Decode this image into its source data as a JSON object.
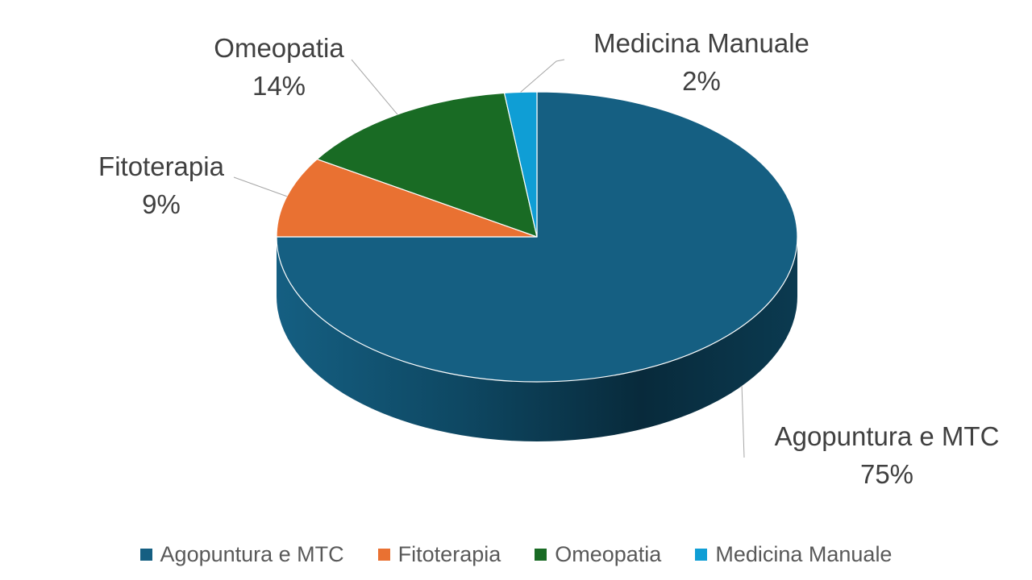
{
  "chart_data": {
    "type": "pie",
    "style": "3d",
    "categories": [
      "Agopuntura e MTC",
      "Fitoterapia",
      "Omeopatia",
      "Medicina Manuale"
    ],
    "values": [
      75,
      9,
      14,
      2
    ],
    "value_labels": [
      "75%",
      "9%",
      "14%",
      "2%"
    ],
    "colors": [
      "#155F82",
      "#E97132",
      "#196B24",
      "#0F9ED5"
    ],
    "legend": {
      "position": "bottom",
      "entries": [
        "Agopuntura e MTC",
        "Fitoterapia",
        "Omeopatia",
        "Medicina Manuale"
      ]
    }
  }
}
